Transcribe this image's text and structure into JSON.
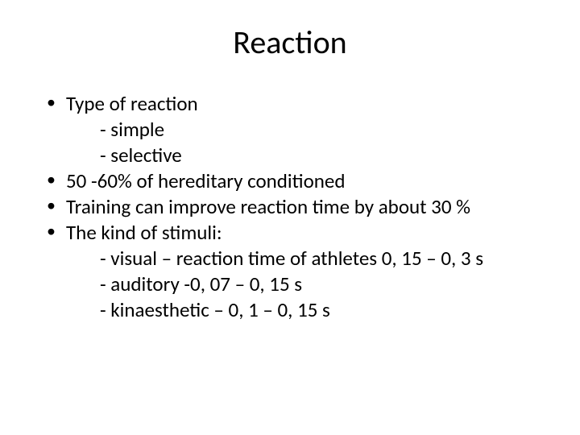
{
  "slide": {
    "title": "Reaction",
    "bullets": [
      {
        "text": "Type of reaction",
        "subs": [
          "- simple",
          "- selective"
        ]
      },
      {
        "text": "50 -60% of hereditary conditioned",
        "subs": []
      },
      {
        "text": "Training can improve reaction time by about 30 %",
        "subs": []
      },
      {
        "text": "The kind of stimuli:",
        "subs": [
          "- visual – reaction time of athletes 0, 15 – 0, 3 s",
          "- auditory -0, 07 – 0, 15 s",
          "- kinaesthetic – 0, 1 – 0, 15 s"
        ]
      }
    ]
  },
  "style": {
    "background_color": "#ffffff",
    "text_color": "#000000",
    "title_fontsize": 40,
    "body_fontsize": 25,
    "font_family": "Calibri"
  }
}
